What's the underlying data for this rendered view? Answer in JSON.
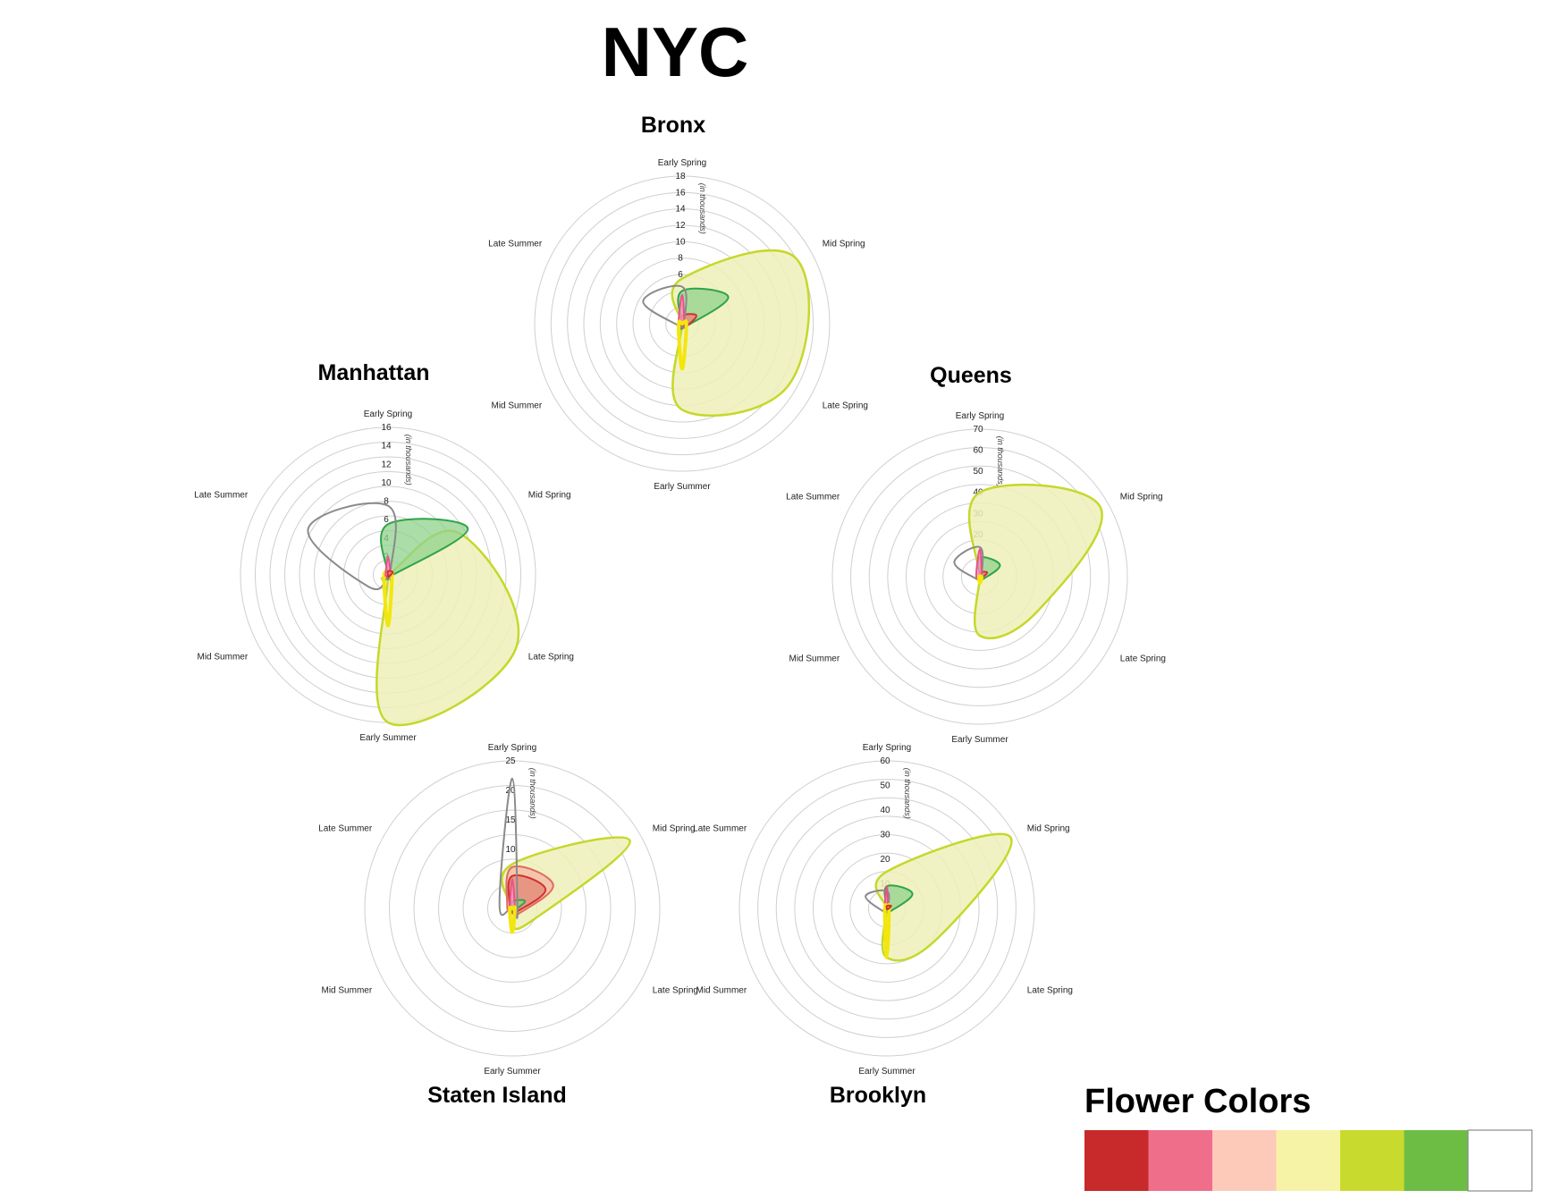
{
  "title": "NYC",
  "chart_data": {
    "type": "radar",
    "axes": [
      "Early Spring",
      "Mid Spring",
      "Late Spring",
      "Early Summer",
      "Mid Summer",
      "Late Summer"
    ],
    "unit_label": "(in thousands)",
    "legend": {
      "title": "Flower Colors",
      "colors": [
        "#c8292a",
        "#ef6e8a",
        "#fdc9b9",
        "#f7f3a6",
        "#c9da2e",
        "#6dbd45",
        "#ffffff"
      ]
    },
    "boroughs": [
      {
        "name": "Bronx",
        "ticks": [
          "18",
          "16",
          "14",
          "12",
          "10",
          "8",
          "6"
        ],
        "max": 18,
        "series": [
          {
            "color": "lightgreen",
            "values": [
              5.5,
              16,
              15,
              10.5,
              0,
              0
            ]
          },
          {
            "color": "green",
            "values": [
              4,
              6.5,
              0.6,
              0.3,
              0,
              0
            ]
          },
          {
            "color": "red",
            "values": [
              1,
              2,
              0.6,
              0.2,
              0,
              0
            ]
          },
          {
            "color": "gray",
            "values": [
              4.5,
              0.3,
              0.2,
              0.2,
              0.5,
              5.5
            ]
          },
          {
            "color": "pink",
            "values": [
              3.5,
              0.3,
              0.2,
              0.3,
              0.2,
              0.5
            ]
          },
          {
            "color": "yellow",
            "values": [
              0,
              0.2,
              0.6,
              5.5,
              0.5,
              0
            ]
          }
        ]
      },
      {
        "name": "Queens",
        "ticks": [
          "70",
          "60",
          "50",
          "40",
          "30",
          "20"
        ],
        "max": 70,
        "series": [
          {
            "color": "lightgreen",
            "values": [
              40,
              66,
              32,
              28,
              0,
              0
            ]
          },
          {
            "color": "green",
            "values": [
              9,
              11,
              2,
              1,
              0,
              0
            ]
          },
          {
            "color": "red",
            "values": [
              2,
              4,
              1,
              0.5,
              0,
              0
            ]
          },
          {
            "color": "gray",
            "values": [
              14,
              1,
              0.5,
              0.5,
              2,
              14
            ]
          },
          {
            "color": "pink",
            "values": [
              13,
              1,
              0.5,
              0.5,
              0.5,
              2
            ]
          },
          {
            "color": "yellow",
            "values": [
              0,
              0.5,
              1,
              3,
              0.5,
              0
            ]
          }
        ]
      },
      {
        "name": "Manhattan",
        "ticks": [
          "16",
          "14",
          "12",
          "10",
          "8",
          "6",
          "4",
          "2"
        ],
        "max": 16,
        "series": [
          {
            "color": "lightgreen",
            "values": [
              0,
              9,
              16,
              16,
              0,
              0
            ]
          },
          {
            "color": "green",
            "values": [
              5.5,
              10,
              0.3,
              0.2,
              0,
              0
            ]
          },
          {
            "color": "gray",
            "values": [
              7.5,
              0.3,
              0.2,
              0.2,
              2.5,
              10
            ]
          },
          {
            "color": "yellow",
            "values": [
              0,
              0.2,
              0.5,
              5.5,
              0.5,
              0
            ]
          },
          {
            "color": "pink",
            "values": [
              2,
              0.3,
              0.2,
              0.3,
              0.2,
              0.3
            ]
          },
          {
            "color": "red",
            "values": [
              0.4,
              0.6,
              0.2,
              0.2,
              0,
              0
            ]
          }
        ]
      },
      {
        "name": "Staten Island",
        "ticks": [
          "25",
          "20",
          "15",
          "10"
        ],
        "max": 25,
        "series": [
          {
            "color": "lightgreen",
            "values": [
              7.5,
              23,
              4,
              2.5,
              0,
              0
            ]
          },
          {
            "color": "salmon",
            "values": [
              7,
              8,
              1.5,
              0.7,
              0.3,
              1
            ]
          },
          {
            "color": "red",
            "values": [
              5.5,
              6.5,
              1,
              0.5,
              0.3,
              0.5
            ]
          },
          {
            "color": "green",
            "values": [
              1.2,
              2.5,
              0.5,
              0.3,
              0,
              0
            ]
          },
          {
            "color": "gray",
            "values": [
              22,
              1,
              0.5,
              0.3,
              0.5,
              2.5
            ]
          },
          {
            "color": "pink",
            "values": [
              5,
              0.5,
              0.3,
              0.3,
              0.3,
              0.5
            ]
          },
          {
            "color": "yellow",
            "values": [
              0,
              0.3,
              0.5,
              4,
              0.5,
              0
            ]
          }
        ]
      },
      {
        "name": "Brooklyn",
        "ticks": [
          "60",
          "50",
          "40",
          "30",
          "20",
          "10"
        ],
        "max": 60,
        "series": [
          {
            "color": "lightgreen",
            "values": [
              15,
              58,
              24,
              20,
              0,
              0
            ]
          },
          {
            "color": "green",
            "values": [
              9,
              12,
              2,
              1,
              0,
              0
            ]
          },
          {
            "color": "gray",
            "values": [
              7,
              0.5,
              0.3,
              0.3,
              2,
              10
            ]
          },
          {
            "color": "pink",
            "values": [
              9,
              0.5,
              0.3,
              0.3,
              0.3,
              1
            ]
          },
          {
            "color": "yellow",
            "values": [
              0,
              0.3,
              1,
              20,
              1,
              0
            ]
          },
          {
            "color": "red",
            "values": [
              1,
              2,
              0.5,
              0.3,
              0,
              0
            ]
          }
        ]
      }
    ]
  },
  "styles": {
    "lightgreen": {
      "stroke": "#c5d82b",
      "fill": "#eef0b8",
      "opacity": 0.85,
      "width": 2.5,
      "fillable": true
    },
    "green": {
      "stroke": "#2fa447",
      "fill": "#8fd28c",
      "opacity": 0.75,
      "width": 2,
      "fillable": true
    },
    "red": {
      "stroke": "#d03030",
      "fill": "#e58a7b",
      "opacity": 0.8,
      "width": 2,
      "fillable": true
    },
    "salmon": {
      "stroke": "#e26a5e",
      "fill": "#f4b3a3",
      "opacity": 0.7,
      "width": 2,
      "fillable": true
    },
    "gray": {
      "stroke": "#8a8a8a",
      "fill": "none",
      "opacity": 0,
      "width": 2,
      "fillable": false
    },
    "pink": {
      "stroke": "#e8518a",
      "fill": "#f49ab8",
      "opacity": 0.8,
      "width": 2,
      "fillable": true
    },
    "yellow": {
      "stroke": "#f3e60c",
      "fill": "none",
      "opacity": 0,
      "width": 4,
      "fillable": false
    }
  }
}
